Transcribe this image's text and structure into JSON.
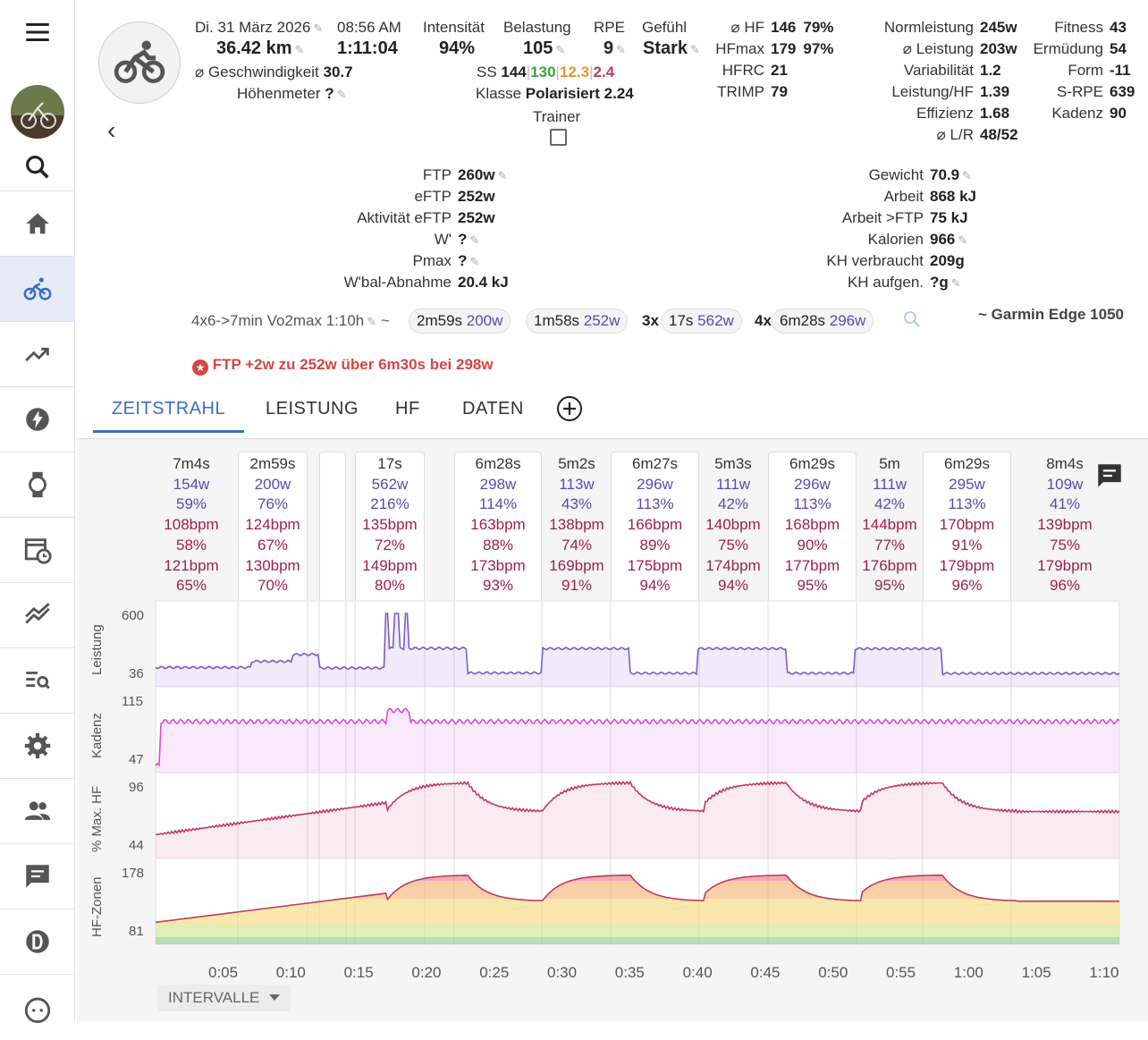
{
  "sidebar": {
    "items": [
      {
        "name": "menu-icon"
      },
      {
        "name": "avatar"
      },
      {
        "name": "search-icon"
      },
      {
        "name": "home-icon"
      },
      {
        "name": "bike-icon",
        "active": true
      },
      {
        "name": "trend-icon"
      },
      {
        "name": "lightning-icon"
      },
      {
        "name": "watch-icon"
      },
      {
        "name": "calendar-icon"
      },
      {
        "name": "compare-icon"
      },
      {
        "name": "list-search-icon"
      },
      {
        "name": "gear-icon"
      },
      {
        "name": "people-icon"
      },
      {
        "name": "chat-icon"
      },
      {
        "name": "d-icon"
      },
      {
        "name": "face-icon"
      }
    ]
  },
  "header": {
    "date": "Di. 31 März 2026",
    "time": "08:56 AM",
    "distance": "36.42 km",
    "duration": "1:11:04",
    "avg_speed_label": "⌀ Geschwindigkeit",
    "avg_speed": "30.7",
    "elevation_label": "Höhenmeter",
    "elevation": "?",
    "intensity_label": "Intensität",
    "intensity": "94%",
    "load_label": "Belastung",
    "load": "105",
    "rpe_label": "RPE",
    "rpe": "9",
    "feel_label": "Gefühl",
    "feel": "Stark",
    "ss_label": "SS",
    "ss_values": [
      "144",
      "130",
      "12.3",
      "2.4"
    ],
    "class_label": "Klasse",
    "class_value": "Polarisiert",
    "class_num": "2.24",
    "trainer_label": "Trainer",
    "back": "‹"
  },
  "hr_stats": [
    {
      "label": "⌀ HF",
      "value": "146",
      "extra": "79%"
    },
    {
      "label": "HFmax",
      "value": "179",
      "extra": "97%"
    },
    {
      "label": "HFRC",
      "value": "21",
      "extra": ""
    },
    {
      "label": "TRIMP",
      "value": "79",
      "extra": ""
    }
  ],
  "power_stats": [
    {
      "label": "Normleistung",
      "value": "245w"
    },
    {
      "label": "⌀ Leistung",
      "value": "203w"
    },
    {
      "label": "Variabilität",
      "value": "1.2"
    },
    {
      "label": "Leistung/HF",
      "value": "1.39"
    },
    {
      "label": "Effizienz",
      "value": "1.68"
    },
    {
      "label": "⌀ L/R",
      "value": "48/52"
    }
  ],
  "fitness_stats": [
    {
      "label": "Fitness",
      "value": "43"
    },
    {
      "label": "Ermüdung",
      "value": "54"
    },
    {
      "label": "Form",
      "value": "-11"
    },
    {
      "label": "S-RPE",
      "value": "639"
    },
    {
      "label": "Kadenz",
      "value": "90"
    }
  ],
  "left_stats": [
    {
      "label": "FTP",
      "value": "260w"
    },
    {
      "label": "eFTP",
      "value": "252w"
    },
    {
      "label": "Aktivität eFTP",
      "value": "252w"
    },
    {
      "label": "W'",
      "value": "?"
    },
    {
      "label": "Pmax",
      "value": "?"
    },
    {
      "label": "W'bal-Abnahme",
      "value": "20.4 kJ"
    }
  ],
  "right_stats": [
    {
      "label": "Gewicht",
      "value": "70.9"
    },
    {
      "label": "Arbeit",
      "value": "868 kJ"
    },
    {
      "label": "Arbeit >FTP",
      "value": "75 kJ"
    },
    {
      "label": "Kalorien",
      "value": "966"
    },
    {
      "label": "KH verbraucht",
      "value": "209g"
    },
    {
      "label": "KH aufgen.",
      "value": "?g"
    }
  ],
  "workout": {
    "name": "4x6->7min Vo2max 1:10h",
    "tilde": "~",
    "chips": [
      {
        "prefix": "",
        "dur": "2m59s",
        "watts": "200w"
      },
      {
        "prefix": "",
        "dur": "1m58s",
        "watts": "252w"
      },
      {
        "prefix": "3x",
        "dur": "17s",
        "watts": "562w"
      },
      {
        "prefix": "4x",
        "dur": "6m28s",
        "watts": "296w"
      }
    ],
    "device": "~ Garmin Edge 1050"
  },
  "ftp_note": "FTP +2w zu 252w über 6m30s bei 298w",
  "tabs": [
    "ZEITSTRAHL",
    "LEISTUNG",
    "HF",
    "DATEN"
  ],
  "intervals": [
    {
      "dur": "7m4s",
      "w": "154w",
      "wp": "59%",
      "hr": "108bpm",
      "hrp": "58%",
      "hrm": "121bpm",
      "hrmp": "65%"
    },
    {
      "dur": "2m59s",
      "w": "200w",
      "wp": "76%",
      "hr": "124bpm",
      "hrp": "67%",
      "hrm": "130bpm",
      "hrmp": "70%"
    },
    {
      "dur": "",
      "w": "",
      "wp": "",
      "hr": "",
      "hrp": "",
      "hrm": "",
      "hrmp": ""
    },
    {
      "dur": "17s",
      "w": "562w",
      "wp": "216%",
      "hr": "135bpm",
      "hrp": "72%",
      "hrm": "149bpm",
      "hrmp": "80%"
    },
    {
      "dur": "6m28s",
      "w": "298w",
      "wp": "114%",
      "hr": "163bpm",
      "hrp": "88%",
      "hrm": "173bpm",
      "hrmp": "93%"
    },
    {
      "dur": "5m2s",
      "w": "113w",
      "wp": "43%",
      "hr": "138bpm",
      "hrp": "74%",
      "hrm": "169bpm",
      "hrmp": "91%"
    },
    {
      "dur": "6m27s",
      "w": "296w",
      "wp": "113%",
      "hr": "166bpm",
      "hrp": "89%",
      "hrm": "175bpm",
      "hrmp": "94%"
    },
    {
      "dur": "5m3s",
      "w": "111w",
      "wp": "42%",
      "hr": "140bpm",
      "hrp": "75%",
      "hrm": "174bpm",
      "hrmp": "94%"
    },
    {
      "dur": "6m29s",
      "w": "296w",
      "wp": "113%",
      "hr": "168bpm",
      "hrp": "90%",
      "hrm": "177bpm",
      "hrmp": "95%"
    },
    {
      "dur": "5m",
      "w": "111w",
      "wp": "42%",
      "hr": "144bpm",
      "hrp": "77%",
      "hrm": "176bpm",
      "hrmp": "95%"
    },
    {
      "dur": "6m29s",
      "w": "295w",
      "wp": "113%",
      "hr": "170bpm",
      "hrp": "91%",
      "hrm": "179bpm",
      "hrmp": "96%"
    },
    {
      "dur": "8m4s",
      "w": "109w",
      "wp": "41%",
      "hr": "139bpm",
      "hrp": "75%",
      "hrm": "179bpm",
      "hrmp": "96%"
    }
  ],
  "chart_data": {
    "type": "line",
    "x_ticks": [
      "0:05",
      "0:10",
      "0:15",
      "0:20",
      "0:25",
      "0:30",
      "0:35",
      "0:40",
      "0:45",
      "0:50",
      "0:55",
      "1:00",
      "1:05",
      "1:10"
    ],
    "series": [
      {
        "name": "Leistung",
        "ymin": 36,
        "ymax": 600,
        "color": "#7b5cc4"
      },
      {
        "name": "Kadenz",
        "ymin": 47,
        "ymax": 115,
        "color": "#d94ad9"
      },
      {
        "name": "% Max. HF",
        "ymin": 44,
        "ymax": 96,
        "color": "#c0395f"
      },
      {
        "name": "HF-Zonen",
        "ymin": 81,
        "ymax": 178,
        "color": "#c0395f"
      }
    ],
    "power_steps_w": [
      154,
      200,
      252,
      562,
      298,
      113,
      296,
      111,
      296,
      111,
      295,
      109
    ]
  },
  "footer": {
    "intervals_btn": "INTERVALLE"
  }
}
